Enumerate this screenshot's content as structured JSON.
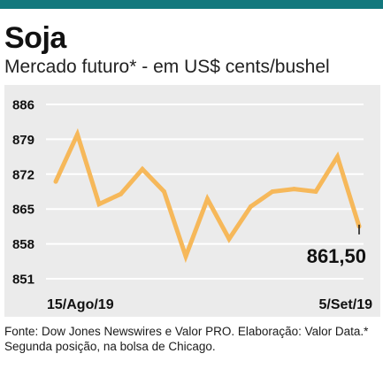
{
  "header": {
    "title": "Soja",
    "subtitle": "Mercado futuro* - em US$ cents/bushel"
  },
  "source": "Fonte: Dow Jones Newswires e Valor PRO. Elaboração: Valor Data.* Segunda posição, na bolsa de Chicago.",
  "colors": {
    "accent_bar": "#12787d",
    "line": "#f6b85a",
    "panel_bg": "#ebebeb",
    "gridline": "#ffffff"
  },
  "chart_data": {
    "type": "line",
    "title": "Soja",
    "subtitle": "Mercado futuro* - em US$ cents/bushel",
    "y_ticks": [
      "886",
      "879",
      "872",
      "865",
      "858",
      "851"
    ],
    "ylim": [
      851,
      886
    ],
    "x_tick_labels": [
      "15/Ago/19",
      "5/Set/19"
    ],
    "x": [
      "15/Ago/19",
      "16/Ago/19",
      "19/Ago/19",
      "20/Ago/19",
      "21/Ago/19",
      "22/Ago/19",
      "23/Ago/19",
      "26/Ago/19",
      "27/Ago/19",
      "28/Ago/19",
      "29/Ago/19",
      "30/Ago/19",
      "3/Set/19",
      "4/Set/19",
      "5/Set/19"
    ],
    "series": [
      {
        "values": [
          870.5,
          880.0,
          866.0,
          868.0,
          873.0,
          868.5,
          855.5,
          867.0,
          859.0,
          865.5,
          868.5,
          869.0,
          868.5,
          875.5,
          861.5
        ]
      }
    ],
    "last_value_label": "861,50",
    "grid": true
  }
}
